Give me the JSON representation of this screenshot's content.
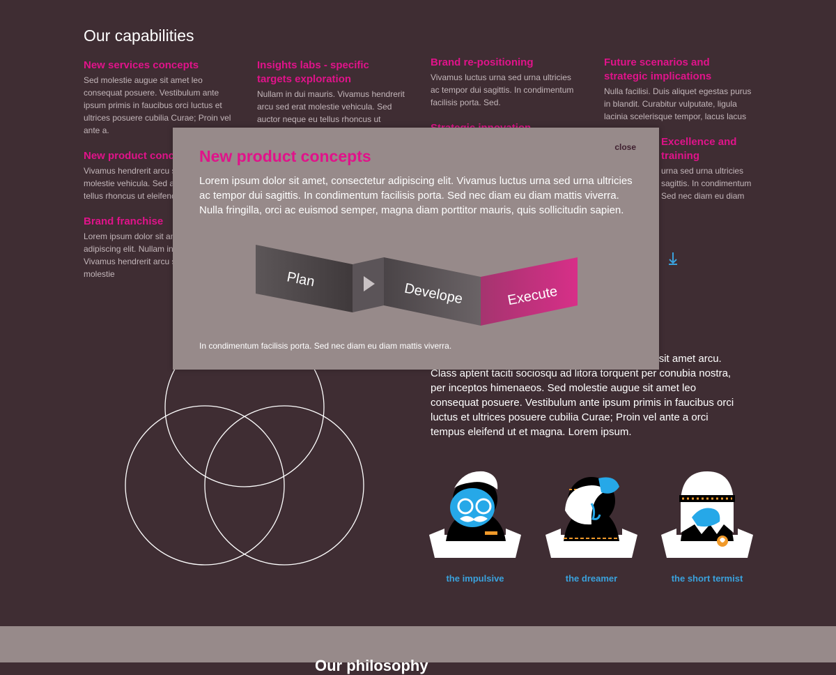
{
  "capabilities": {
    "title": "Our capabilities",
    "columns": [
      [
        {
          "title": "New services concepts",
          "text": "Sed molestie augue sit amet leo consequat posuere. Vestibulum ante ipsum primis in faucibus orci luctus et ultrices posuere cubilia Curae; Proin vel ante a."
        },
        {
          "title": "New product concepts",
          "text": "Vivamus hendrerit arcu sed erat molestie vehicula. Sed auctor neque eu tellus rhoncus ut eleifend"
        },
        {
          "title": "Brand franchise",
          "text": "Lorem ipsum dolor sit amet, consectetur adipiscing elit. Nullam in dui mauris. Vivamus hendrerit arcu sed erat molestie"
        }
      ],
      [
        {
          "title": "Insights labs - specific targets exploration",
          "text": "Nullam in dui mauris. Vivamus hendrerit arcu sed erat molestie vehicula. Sed auctor neque eu tellus rhoncus ut"
        }
      ],
      [
        {
          "title": "Brand re-positioning",
          "text": "Vivamus luctus urna sed urna ultricies ac tempor dui sagittis. In condimentum facilisis porta. Sed."
        },
        {
          "title": "Strategic innovation",
          "text": ""
        }
      ],
      [
        {
          "title": "Future scenarios and strategic implications",
          "text": "Nulla facilisi. Duis aliquet egestas purus in blandit. Curabitur vulputate, ligula lacinia scelerisque tempor, lacus lacus"
        },
        {
          "title": "Excellence and training",
          "text": "urna sed urna ultricies sagittis. In condimentum Sed nec diam eu diam"
        }
      ]
    ],
    "more_link": "s"
  },
  "about_text": "por, lacus lacus ornare ante, ac egestas est urna sit amet arcu. Class aptent taciti sociosqu ad litora torquent per conubia nostra, per inceptos himenaeos. Sed molestie augue sit amet leo consequat posuere. Vestibulum ante ipsum primis in faucibus orci luctus et ultrices posuere cubilia Curae; Proin vel ante a orci tempus eleifend ut et magna. Lorem ipsum.",
  "personas": [
    {
      "label": "the impulsive"
    },
    {
      "label": "the dreamer"
    },
    {
      "label": "the short termist"
    }
  ],
  "footer": {
    "title": "Our philosophy"
  },
  "modal": {
    "close_label": "close",
    "title": "New product concepts",
    "text": "Lorem ipsum dolor sit amet, consectetur adipiscing elit. Vivamus luctus urna sed urna ultricies ac tempor dui sagittis. In condimentum facilisis porta. Sed nec diam eu diam mattis viverra. Nulla fringilla, orci ac euismod semper, magna diam porttitor mauris, quis sollicitudin sapien.",
    "process": {
      "steps": [
        "Plan",
        "Develope",
        "Execute"
      ]
    },
    "footnote": "In condimentum facilisis porta. Sed nec diam eu diam mattis viverra."
  },
  "colors": {
    "background": "#3f2d33",
    "accent": "#e0138a",
    "link": "#3aa2dd",
    "modal_bg": "#978a8a"
  }
}
